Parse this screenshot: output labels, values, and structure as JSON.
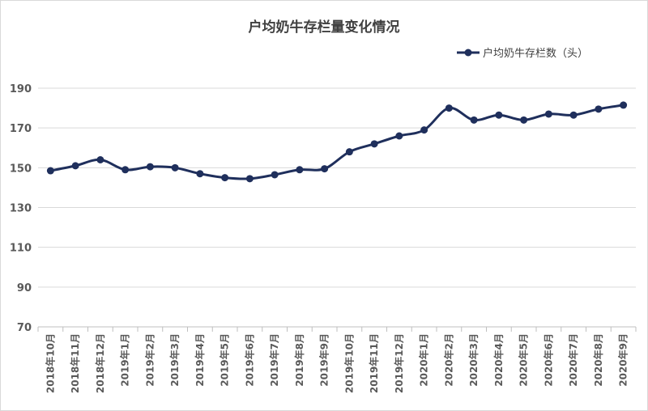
{
  "chart_data": {
    "type": "line",
    "title": "户均奶牛存栏量变化情况",
    "xlabel": "",
    "ylabel": "",
    "ylim": [
      70,
      190
    ],
    "yticks": [
      70,
      90,
      110,
      130,
      150,
      170,
      190
    ],
    "grid": "horizontal",
    "legend_position": "top-right",
    "categories": [
      "2018年10月",
      "2018年11月",
      "2018年12月",
      "2019年1月",
      "2019年2月",
      "2019年3月",
      "2019年4月",
      "2019年5月",
      "2019年6月",
      "2019年7月",
      "2019年8月",
      "2019年9月",
      "2019年10月",
      "2019年11月",
      "2019年12月",
      "2020年1月",
      "2020年2月",
      "2020年3月",
      "2020年4月",
      "2020年5月",
      "2020年6月",
      "2020年7月",
      "2020年8月",
      "2020年9月"
    ],
    "series": [
      {
        "name": "户均奶牛存栏数（头）",
        "color": "#1f2f5c",
        "values": [
          148.5,
          151,
          154,
          149,
          150.5,
          150,
          147,
          145,
          144.5,
          146.5,
          149,
          149.5,
          158,
          162,
          166,
          169,
          180,
          174,
          176.5,
          174,
          177,
          176.5,
          179.5,
          181.5
        ]
      }
    ]
  }
}
